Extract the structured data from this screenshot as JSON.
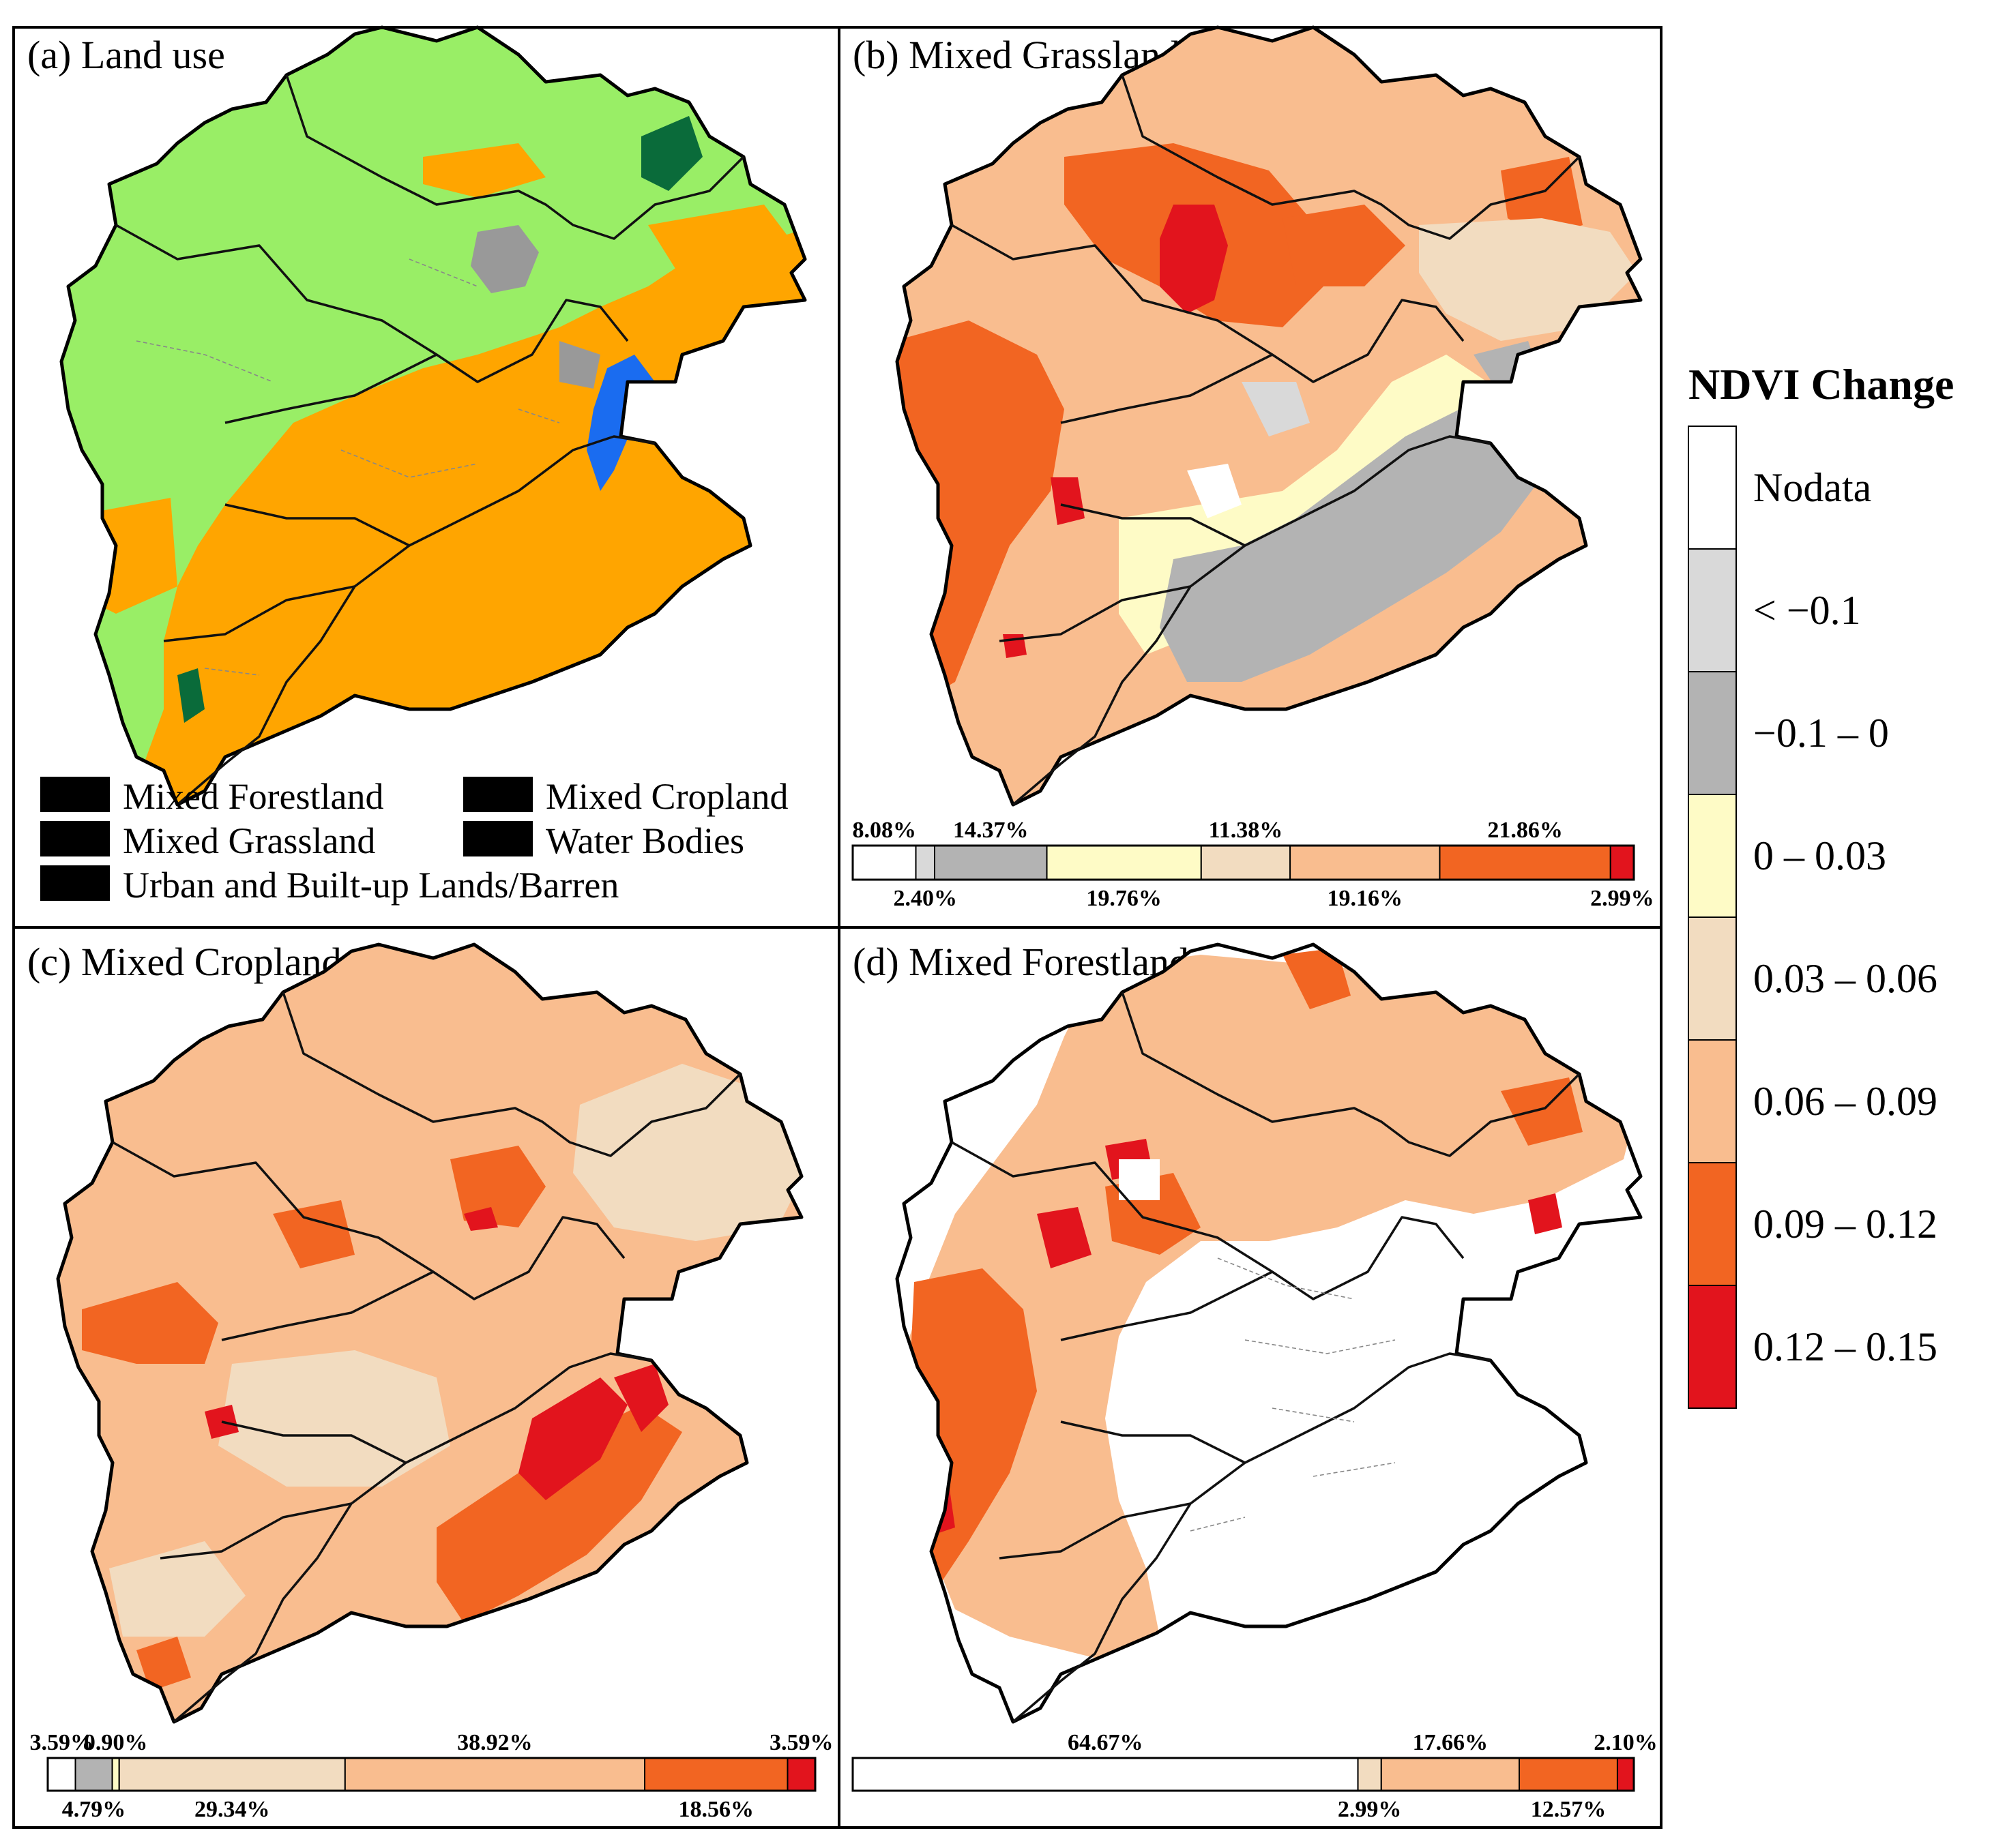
{
  "panels": {
    "a": {
      "title": "(a) Land use"
    },
    "b": {
      "title": "(b) Mixed Grassland"
    },
    "c": {
      "title": "(c) Mixed Cropland"
    },
    "d": {
      "title": "(d) Mixed Forestland"
    }
  },
  "landuse_legend": [
    {
      "label": "Mixed Forestland",
      "color": "#0a6b3a"
    },
    {
      "label": "Mixed Cropland",
      "color": "#ffa500"
    },
    {
      "label": "Mixed Grassland",
      "color": "#99ee66"
    },
    {
      "label": "Water Bodies",
      "color": "#1a6cf0"
    },
    {
      "label": "Urban and Built-up Lands/Barren",
      "color": "#999999"
    }
  ],
  "ndvi_legend": {
    "title": "NDVI Change",
    "classes": [
      {
        "label": "Nodata",
        "color": "#ffffff"
      },
      {
        "label": "< −0.1",
        "color": "#d9d9d9"
      },
      {
        "label": "−0.1 – 0",
        "color": "#b3b3b3"
      },
      {
        "label": "0 – 0.03",
        "color": "#fefbc6"
      },
      {
        "label": "0.03 – 0.06",
        "color": "#f2dcc0"
      },
      {
        "label": "0.06 – 0.09",
        "color": "#f9bd8f"
      },
      {
        "label": "0.09 – 0.12",
        "color": "#f26522"
      },
      {
        "label": "0.12 – 0.15",
        "color": "#e2141d"
      }
    ]
  },
  "chart_data": [
    {
      "type": "bar",
      "panel": "b",
      "stacked": true,
      "unit": "%",
      "categories": [
        "Nodata",
        "< −0.1",
        "−0.1 – 0",
        "0 – 0.03",
        "0.03 – 0.06",
        "0.06 – 0.09",
        "0.09 – 0.12",
        "0.12 – 0.15"
      ],
      "values": [
        8.08,
        2.4,
        14.37,
        19.76,
        11.38,
        19.16,
        21.86,
        2.99
      ],
      "labels": [
        "8.08%",
        "2.40%",
        "14.37%",
        "19.76%",
        "11.38%",
        "19.16%",
        "21.86%",
        "2.99%"
      ]
    },
    {
      "type": "bar",
      "panel": "c",
      "stacked": true,
      "unit": "%",
      "categories": [
        "Nodata",
        "< −0.1",
        "−0.1 – 0",
        "0 – 0.03",
        "0.03 – 0.06",
        "0.06 – 0.09",
        "0.09 – 0.12",
        "0.12 – 0.15"
      ],
      "values": [
        3.59,
        0,
        4.79,
        0.9,
        29.34,
        38.92,
        18.56,
        3.59
      ],
      "labels": [
        "3.59%",
        "",
        "4.79%",
        "0.90%",
        "29.34%",
        "38.92%",
        "18.56%",
        "3.59%"
      ]
    },
    {
      "type": "bar",
      "panel": "d",
      "stacked": true,
      "unit": "%",
      "categories": [
        "Nodata",
        "< −0.1",
        "−0.1 – 0",
        "0 – 0.03",
        "0.03 – 0.06",
        "0.06 – 0.09",
        "0.09 – 0.12",
        "0.12 – 0.15"
      ],
      "values": [
        64.67,
        0,
        0,
        0,
        2.99,
        17.66,
        12.57,
        2.1
      ],
      "labels": [
        "64.67%",
        "",
        "",
        "",
        "2.99%",
        "17.66%",
        "12.57%",
        "2.10%"
      ]
    }
  ]
}
